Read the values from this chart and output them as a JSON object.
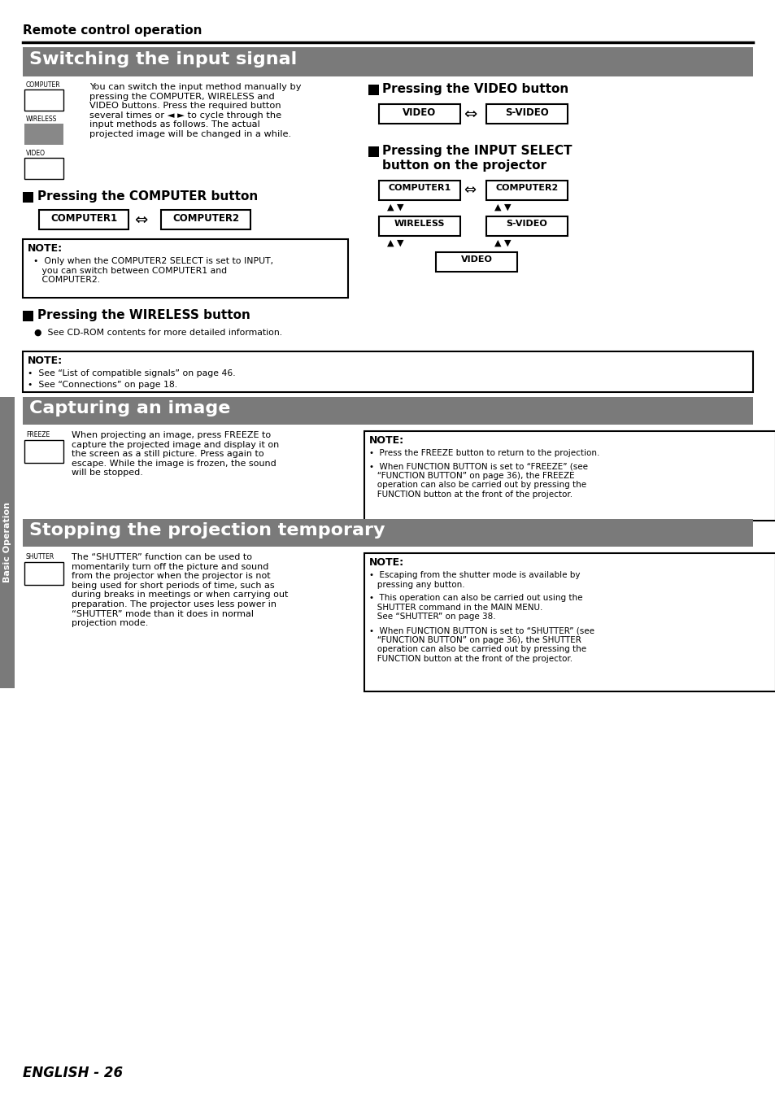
{
  "page_bg": "#ffffff",
  "header_text": "Remote control operation",
  "section1_title": "Switching the input signal",
  "section2_title": "Capturing an image",
  "section3_title": "Stopping the projection temporary",
  "section_title_bg": "#7a7a7a",
  "section_title_color": "#ffffff",
  "sidebar_bg": "#7a7a7a",
  "sidebar_text": "Basic Operation",
  "sidebar_text_color": "#ffffff",
  "footer_text": "ENGLISH - 26",
  "intro_text": "You can switch the input method manually by\npressing the COMPUTER, WIRELESS and\nVIDEO buttons. Press the required button\nseveral times or ◄ ► to cycle through the\ninput methods as follows. The actual\nprojected image will be changed in a while.",
  "note1_text1": "•  Only when the ",
  "note1_text2": "COMPUTER2 SELECT",
  "note1_text3": " is set to ",
  "note1_text4": "INPUT",
  "note1_text5": ",\n   you can switch between ",
  "note1_text6": "COMPUTER1",
  "note1_text7": " and\n   ",
  "note1_text8": "COMPUTER2",
  "note1_text9": ".",
  "wireless_bullet": "●  See CD-ROM contents for more detailed information.",
  "note2_line1": "•  See “List of compatible signals” on page 46.",
  "note2_line2": "•  See “Connections” on page 18.",
  "freeze_text": "When projecting an image, press FREEZE to\ncapture the projected image and display it on\nthe screen as a still picture. Press again to\nescape. While the image is frozen, the sound\nwill be stopped.",
  "freeze_note1": "•  Press the FREEZE button to return to the projection.",
  "freeze_note2": "•  When FUNCTION BUTTON is set to “FREEZE” (see\n   “FUNCTION BUTTON” on page 36), the FREEZE\n   operation can also be carried out by pressing the\n   FUNCTION button at the front of the projector.",
  "shutter_text": "The “SHUTTER” function can be used to\nmomentarily turn off the picture and sound\nfrom the projector when the projector is not\nbeing used for short periods of time, such as\nduring breaks in meetings or when carrying out\npreparation. The projector uses less power in\n“SHUTTER” mode than it does in normal\nprojection mode.",
  "shutter_note1": "•  Escaping from the shutter mode is available by\n   pressing any button.",
  "shutter_note2": "•  This operation can also be carried out using the\n   SHUTTER command in the MAIN MENU.\n   See “SHUTTER” on page 38.",
  "shutter_note3": "•  When FUNCTION BUTTON is set to “SHUTTER” (see\n   “FUNCTION BUTTON” on page 36), the SHUTTER\n   operation can also be carried out by pressing the\n   FUNCTION button at the front of the projector."
}
